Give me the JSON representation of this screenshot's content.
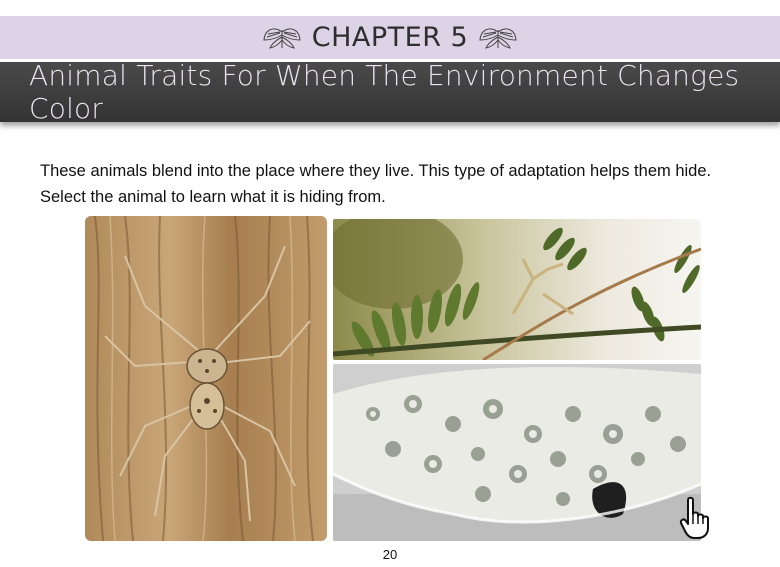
{
  "header": {
    "chapter_label": "CHAPTER 5",
    "ornament_icon": "moth-icon"
  },
  "title": "Animal Traits For When The Environment Changes Color",
  "intro_text": "These animals blend into the place where they live. This type of adaptation helps them hide. Select the animal to learn what it is hiding from.",
  "photos": [
    {
      "subject": "spider-on-bark"
    },
    {
      "subject": "mantis-on-leaves"
    },
    {
      "subject": "flounder-on-sand"
    }
  ],
  "page_number": "20",
  "colors": {
    "chapter_band": "#ddd3e6",
    "title_bar": "#3a3a3a",
    "title_text": "#e8e3ef"
  }
}
